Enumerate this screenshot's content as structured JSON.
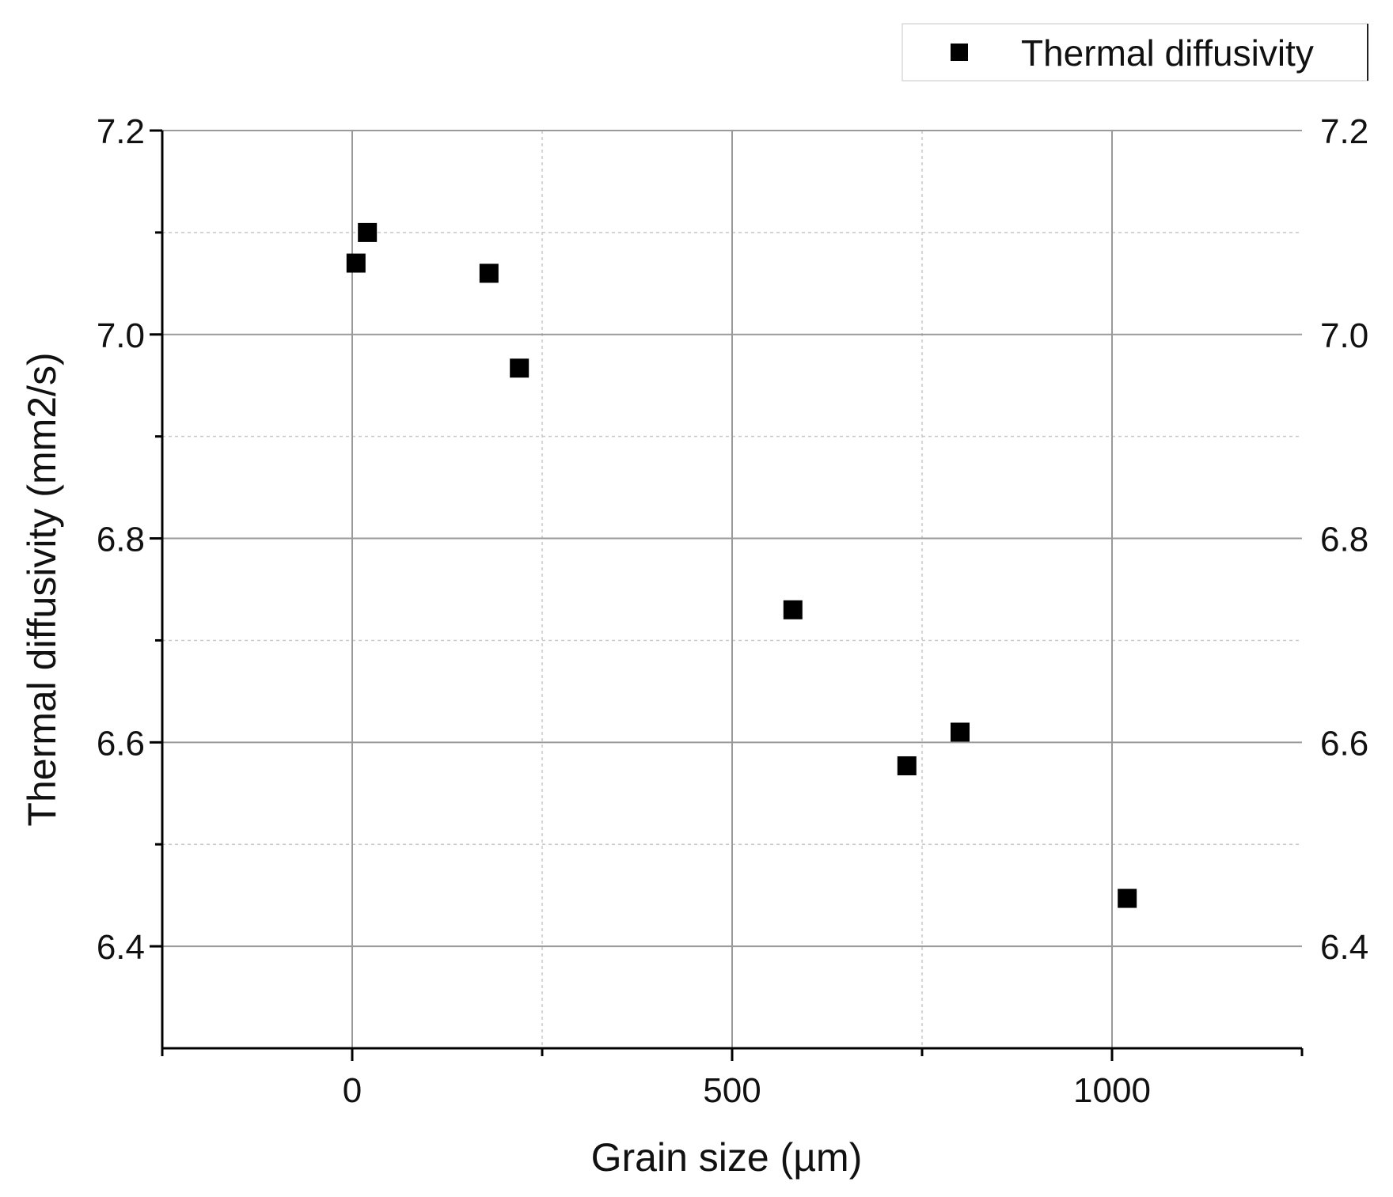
{
  "chart_data": {
    "type": "scatter",
    "title": "",
    "xlabel": "Grain size (µm)",
    "ylabel": "Thermal diffusivity (mm2/s)",
    "xlim": [
      -250,
      1250
    ],
    "ylim": [
      6.3,
      7.2
    ],
    "x_ticks": [
      0,
      500,
      1000
    ],
    "x_tick_labels": [
      "0",
      "500",
      "1000"
    ],
    "y_ticks": [
      6.4,
      6.6,
      6.8,
      7.0,
      7.2
    ],
    "y_tick_labels": [
      "6.4",
      "6.6",
      "6.8",
      "7.0",
      "7.2"
    ],
    "right_y_tick_labels": [
      "6.4",
      "6.6",
      "6.8",
      "7.0",
      "7.2"
    ],
    "grid": true,
    "legend_position": "top-right",
    "marker": "square",
    "marker_color": "#000000",
    "series": [
      {
        "name": "Thermal diffusivity",
        "x": [
          5,
          20,
          180,
          220,
          580,
          730,
          800,
          1020
        ],
        "y": [
          7.07,
          7.1,
          7.06,
          6.967,
          6.73,
          6.577,
          6.61,
          6.447
        ]
      }
    ]
  }
}
